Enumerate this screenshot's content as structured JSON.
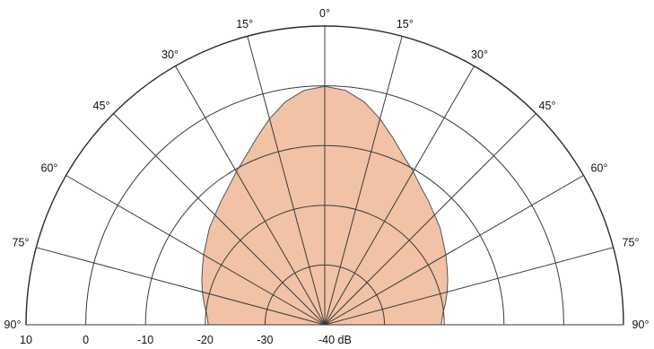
{
  "chart_data": {
    "type": "polar",
    "fill_color": "#f1c2a5",
    "stroke_color": "#555555",
    "angle_labels": [
      "0°",
      "15°",
      "30°",
      "45°",
      "60°",
      "75°",
      "90°"
    ],
    "radial_tick_labels": [
      "10",
      "0",
      "-10",
      "-20",
      "-30",
      "-40 dB"
    ],
    "radial_range_db": [
      -40,
      10
    ],
    "angles_deg": [
      0,
      5,
      10,
      15,
      20,
      25,
      30,
      35,
      40,
      45,
      50,
      55,
      60,
      65,
      70,
      75,
      80,
      85,
      90
    ],
    "level_db": [
      -0.1,
      -0.6,
      -2.1,
      -4.3,
      -6.7,
      -8.8,
      -10.4,
      -11.9,
      -13.0,
      -14.0,
      -14.8,
      -15.8,
      -16.6,
      -17.4,
      -18.1,
      -18.8,
      -19.5,
      -20.2,
      -20.5
    ]
  }
}
